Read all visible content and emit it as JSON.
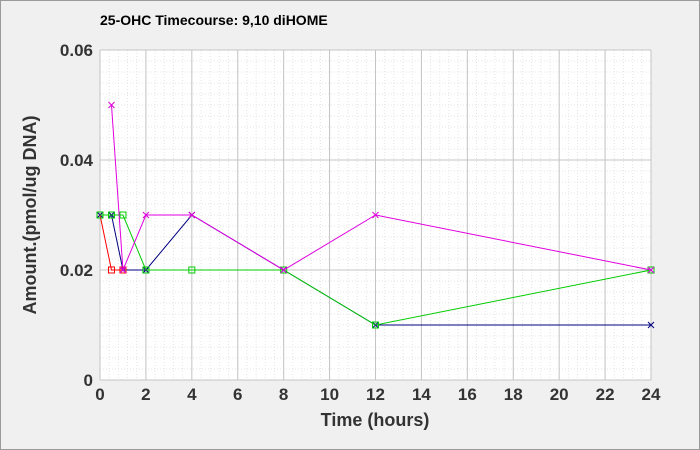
{
  "chart_data": {
    "type": "line",
    "title": "25-OHC Timecourse: 9,10 diHOME",
    "xlabel": "Time (hours)",
    "ylabel": "Amount.(pmol/ug DNA)",
    "xlim": [
      0,
      24
    ],
    "ylim": [
      0,
      0.06
    ],
    "xticks": [
      0,
      2,
      4,
      6,
      8,
      10,
      12,
      14,
      16,
      18,
      20,
      22,
      24
    ],
    "yticks": [
      0,
      0.02,
      0.04,
      0.06
    ],
    "xtick_labels": [
      "0",
      "2",
      "4",
      "6",
      "8",
      "10",
      "12",
      "14",
      "16",
      "18",
      "20",
      "22",
      "24"
    ],
    "ytick_labels": [
      "0",
      "0.02",
      "0.04",
      "0.06"
    ],
    "grid": true,
    "series": [
      {
        "color": "#000080",
        "marker": "x",
        "x": [
          0,
          0.5,
          1,
          2,
          4,
          8,
          12,
          24
        ],
        "y": [
          0.03,
          0.03,
          0.02,
          0.02,
          0.03,
          0.02,
          0.01,
          0.01
        ]
      },
      {
        "color": "#ff0000",
        "marker": "square",
        "x": [
          0,
          0.5,
          1
        ],
        "y": [
          0.03,
          0.02,
          0.02
        ]
      },
      {
        "color": "#00cc00",
        "marker": "square",
        "x": [
          0,
          0.5,
          1,
          2,
          4,
          8,
          12,
          24
        ],
        "y": [
          0.03,
          0.03,
          0.03,
          0.02,
          0.02,
          0.02,
          0.01,
          0.02
        ]
      },
      {
        "color": "#e000e0",
        "marker": "x",
        "x": [
          0.5,
          1,
          2,
          4,
          8,
          12,
          24
        ],
        "y": [
          0.05,
          0.02,
          0.03,
          0.03,
          0.02,
          0.03,
          0.02
        ]
      }
    ]
  }
}
